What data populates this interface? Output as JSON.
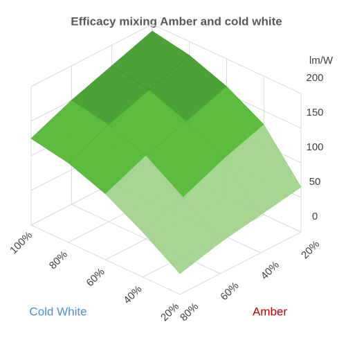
{
  "chart_data": {
    "type": "surface",
    "title": "Efficacy mixing Amber and cold white",
    "z_label": "lm/W",
    "x_label": "Cold White",
    "y_label": "Amber",
    "x_categories": [
      "100%",
      "80%",
      "60%",
      "40%",
      "20%"
    ],
    "y_categories": [
      "20%",
      "40%",
      "60%",
      "80%"
    ],
    "values": [
      [
        190,
        180,
        160,
        130,
        65
      ],
      [
        170,
        160,
        140,
        110,
        55
      ],
      [
        150,
        140,
        120,
        85,
        45
      ],
      [
        125,
        115,
        95,
        65,
        30
      ]
    ],
    "zlim": [
      0,
      200
    ],
    "zticks": [
      0,
      50,
      100,
      150,
      200
    ],
    "band_colors": [
      "#b5dca0",
      "#9fd38a",
      "#4fb52f",
      "#3d9a26"
    ],
    "x_label_color": "#4a90c8",
    "y_label_color": "#c00000",
    "grid": true
  }
}
